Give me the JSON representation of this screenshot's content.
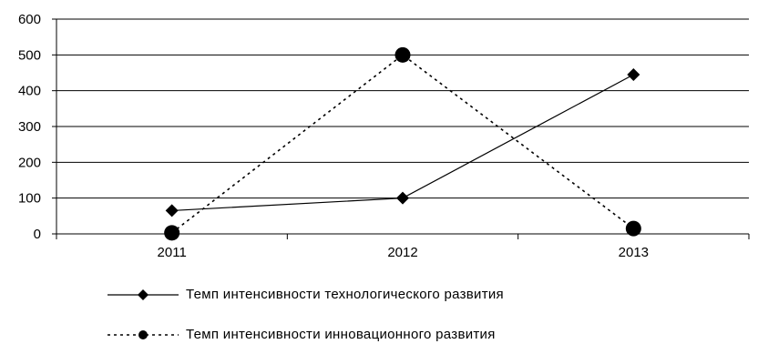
{
  "chart_data": {
    "type": "line",
    "categories": [
      "2011",
      "2012",
      "2013"
    ],
    "ylim": [
      0,
      600
    ],
    "yticks": [
      0,
      100,
      200,
      300,
      400,
      500,
      600
    ],
    "grid": true,
    "legend_position": "bottom",
    "series": [
      {
        "name": "Темп интенсивности технологического развития",
        "values": [
          65,
          100,
          445
        ],
        "line_style": "solid",
        "marker": "diamond",
        "color": "#000000"
      },
      {
        "name": "Темп интенсивности инновационного развития",
        "values": [
          3,
          500,
          15
        ],
        "line_style": "dotted",
        "marker": "circle",
        "color": "#000000"
      }
    ]
  }
}
